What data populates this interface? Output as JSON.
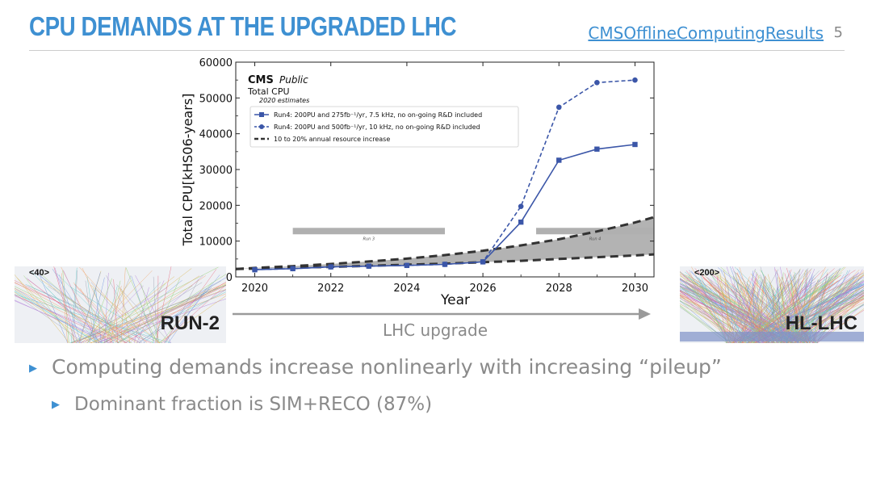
{
  "slide": {
    "title": "CPU DEMANDS AT THE UPGRADED LHC",
    "link": "CMSOfflineComputingResults",
    "page_number": "5"
  },
  "chart_data": {
    "type": "line",
    "xlabel": "Year",
    "ylabel": "Total CPU[kHS06-years]",
    "xlim": [
      2019.5,
      2030.5
    ],
    "ylim": [
      0,
      60000
    ],
    "xticks": [
      "2020",
      "2022",
      "2024",
      "2026",
      "2028",
      "2030"
    ],
    "yticks": [
      "0",
      "10000",
      "20000",
      "30000",
      "40000",
      "50000",
      "60000"
    ],
    "header": {
      "cms": "CMS",
      "public": "Public",
      "total": "Total CPU",
      "estimates": "2020 estimates"
    },
    "legend_position": "top-left",
    "series": [
      {
        "name": "Run4: 200PU and 275fb⁻¹/yr, 7.5 kHz, no on-going R&D included",
        "style": "solid-square",
        "color": "#3b56a8",
        "x": [
          2020,
          2021,
          2022,
          2023,
          2024,
          2025,
          2026,
          2027,
          2028,
          2029,
          2030
        ],
        "y": [
          2000,
          2300,
          2800,
          3000,
          3200,
          3500,
          4200,
          15300,
          32600,
          35700,
          37000
        ]
      },
      {
        "name": "Run4: 200PU and 500fb⁻¹/yr, 10 kHz, no on-going R&D included",
        "style": "dashed-circle",
        "color": "#3b56a8",
        "x": [
          2020,
          2021,
          2022,
          2023,
          2024,
          2025,
          2026,
          2027,
          2028,
          2029,
          2030
        ],
        "y": [
          2000,
          2300,
          2800,
          3000,
          3200,
          3500,
          4200,
          19700,
          47400,
          54300,
          55000
        ]
      },
      {
        "name": "10 to 20% annual resource increase",
        "style": "thick-dashed-band",
        "color": "#333333",
        "x": [
          2019.5,
          2020,
          2021,
          2022,
          2023,
          2024,
          2025,
          2026,
          2027,
          2028,
          2029,
          2030,
          2030.5
        ],
        "low": [
          2200,
          2300,
          2600,
          2800,
          3100,
          3400,
          3700,
          4100,
          4500,
          5000,
          5500,
          6000,
          6300
        ],
        "high": [
          2200,
          2500,
          3000,
          3600,
          4300,
          5100,
          6100,
          7300,
          8800,
          10500,
          12700,
          15200,
          16700
        ]
      }
    ],
    "periods": [
      {
        "label": "Run 3",
        "x": [
          2021,
          2025
        ],
        "y": 12800
      },
      {
        "label": "Run 4",
        "x": [
          2027.4,
          2030.5
        ],
        "y": 12800
      }
    ]
  },
  "thumbnails": {
    "left": {
      "pileup": "<40>",
      "label": "RUN-2"
    },
    "right": {
      "pileup": "<200>",
      "label": "HL-LHC"
    }
  },
  "arrow_label": "LHC upgrade",
  "bullets": [
    "Computing demands increase nonlinearly with increasing “pileup”",
    "Dominant fraction is SIM+RECO (87%)"
  ]
}
